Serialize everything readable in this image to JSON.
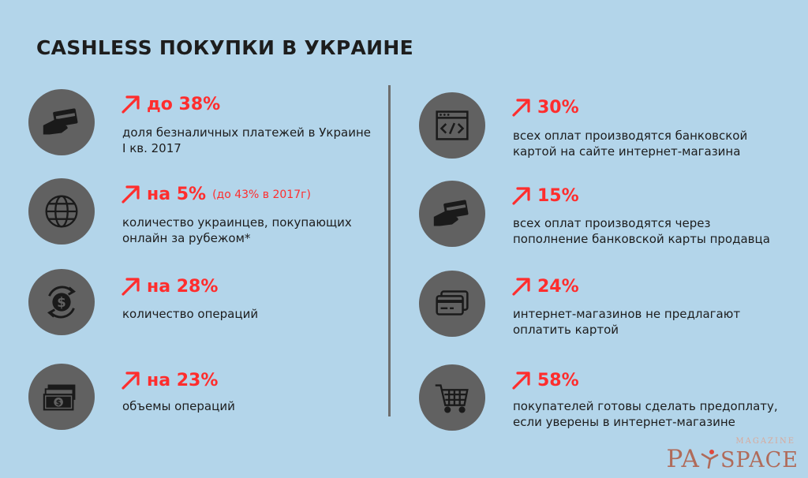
{
  "title": "CASHLESS ПОКУПКИ В УКРАИНЕ",
  "colors": {
    "background": "#b3d5ea",
    "accent": "#ff2d2d",
    "icon_circle": "#616161",
    "text": "#1d1d1d",
    "logo": "#b06b5a"
  },
  "left": [
    {
      "icon": "card-in-hand-icon",
      "value": "до 38%",
      "note": "",
      "desc_line1": "доля безналичных платежей в Украине",
      "desc_line2": "I кв. 2017"
    },
    {
      "icon": "globe-icon",
      "value": "на 5%",
      "note": "(до 43% в 2017г)",
      "desc_line1": "количество украинцев, покупающих",
      "desc_line2": "онлайн за рубежом*"
    },
    {
      "icon": "dollar-exchange-icon",
      "value": "на 28%",
      "note": "",
      "desc_line1": "количество операций",
      "desc_line2": ""
    },
    {
      "icon": "banknotes-icon",
      "value": "на 23%",
      "note": "",
      "desc_line1": "объемы операций",
      "desc_line2": ""
    }
  ],
  "right": [
    {
      "icon": "browser-code-icon",
      "value": "30%",
      "note": "",
      "desc_line1": "всех оплат производятся банковской",
      "desc_line2": "картой на сайте интернет-магазина"
    },
    {
      "icon": "card-in-hand-icon",
      "value": "15%",
      "note": "",
      "desc_line1": "всех оплат производятся через",
      "desc_line2": "пополнение банковской карты продавца"
    },
    {
      "icon": "credit-card-icon",
      "value": "24%",
      "note": "",
      "desc_line1": "интернет-магазинов не предлагают",
      "desc_line2": "оплатить картой"
    },
    {
      "icon": "shopping-cart-icon",
      "value": "58%",
      "note": "",
      "desc_line1": "покупателей готовы сделать предоплату,",
      "desc_line2": "если уверены в интернет-магазине"
    }
  ],
  "logo": {
    "magazine": "MAGAZINE",
    "brand_pa": "PA",
    "brand_space": "SPACE"
  }
}
